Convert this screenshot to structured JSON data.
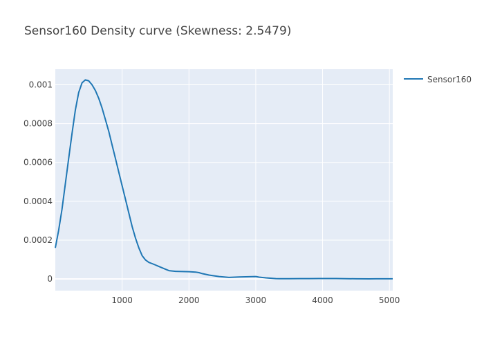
{
  "chart_data": {
    "type": "line",
    "title": "Sensor160 Density curve (Skewness: 2.5479)",
    "xlabel": "",
    "ylabel": "",
    "xlim": [
      0,
      5050
    ],
    "ylim": [
      -6e-05,
      0.00108
    ],
    "x_ticks": [
      1000,
      2000,
      3000,
      4000,
      5000
    ],
    "x_tick_labels": [
      "1000",
      "2000",
      "3000",
      "4000",
      "5000"
    ],
    "y_ticks": [
      0,
      0.0002,
      0.0004,
      0.0006,
      0.0008,
      0.001
    ],
    "y_tick_labels": [
      "0",
      "0.0002",
      "0.0004",
      "0.0006",
      "0.0008",
      "0.001"
    ],
    "grid": true,
    "legend_position": "top-right",
    "plot_background": "#e5ecf6",
    "series": [
      {
        "name": "Sensor160",
        "color": "#1f77b4",
        "x": [
          0,
          50,
          100,
          150,
          200,
          250,
          300,
          350,
          400,
          450,
          500,
          550,
          600,
          650,
          700,
          750,
          800,
          850,
          900,
          950,
          1000,
          1050,
          1100,
          1150,
          1200,
          1250,
          1300,
          1350,
          1400,
          1450,
          1500,
          1550,
          1600,
          1650,
          1700,
          1800,
          1900,
          2000,
          2100,
          2150,
          2200,
          2300,
          2450,
          2600,
          2750,
          2900,
          3000,
          3050,
          3150,
          3300,
          3350,
          3500,
          3650,
          3800,
          3950,
          4050,
          4200,
          4500,
          4700,
          4800,
          5050
        ],
        "y": [
          0.00016,
          0.00025,
          0.00036,
          0.00049,
          0.00062,
          0.00075,
          0.00087,
          0.00096,
          0.00101,
          0.001025,
          0.00102,
          0.001,
          0.00097,
          0.00093,
          0.00088,
          0.00082,
          0.00076,
          0.00069,
          0.00062,
          0.00055,
          0.00048,
          0.00041,
          0.00034,
          0.00027,
          0.00021,
          0.00016,
          0.00012,
          9.78e-05,
          8.55e-05,
          7.88e-05,
          7.17e-05,
          6.45e-05,
          5.73e-05,
          5.02e-05,
          4.3e-05,
          3.93e-05,
          3.82e-05,
          3.76e-05,
          3.55e-05,
          3.25e-05,
          2.75e-05,
          2e-05,
          1.25e-05,
          8e-06,
          1.05e-05,
          1.15e-05,
          1.25e-05,
          9.5e-06,
          6e-06,
          2e-06,
          1.5e-06,
          1.5e-06,
          2e-06,
          2e-06,
          2.5e-06,
          2.5e-06,
          2.5e-06,
          1e-06,
          5e-07,
          1e-06,
          1e-06
        ]
      }
    ]
  }
}
